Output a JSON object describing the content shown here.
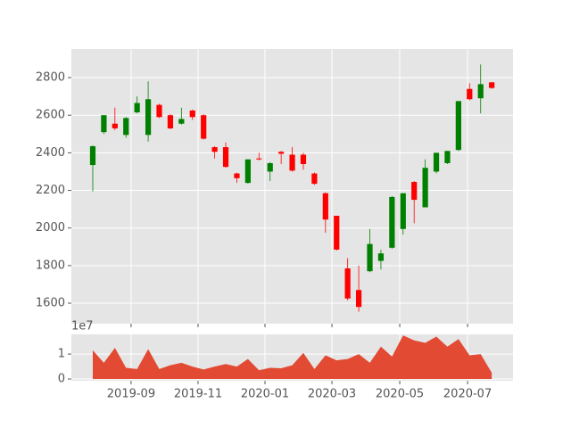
{
  "chart_data": [
    {
      "type": "candlestick",
      "x": [
        0,
        1,
        2,
        3,
        4,
        5,
        6,
        7,
        8,
        9,
        10,
        11,
        12,
        13,
        14,
        15,
        16,
        17,
        18,
        19,
        20,
        21,
        22,
        23,
        24,
        25,
        26,
        27,
        28,
        29,
        30,
        31,
        32,
        33,
        34,
        35,
        36
      ],
      "open": [
        2335,
        2510,
        2555,
        2495,
        2615,
        2495,
        2655,
        2600,
        2555,
        2625,
        2600,
        2430,
        2430,
        2290,
        2240,
        2370,
        2300,
        2405,
        2390,
        2390,
        2290,
        2185,
        2065,
        1785,
        1670,
        1770,
        1825,
        1895,
        1995,
        2245,
        2110,
        2300,
        2345,
        2415,
        2740,
        2690,
        2775
      ],
      "high": [
        2440,
        2600,
        2640,
        2590,
        2700,
        2780,
        2660,
        2605,
        2640,
        2630,
        2605,
        2435,
        2455,
        2295,
        2365,
        2400,
        2350,
        2410,
        2430,
        2400,
        2295,
        2190,
        2065,
        1840,
        1800,
        1995,
        1885,
        2170,
        2185,
        2250,
        2365,
        2400,
        2410,
        2675,
        2770,
        2870,
        2775
      ],
      "low": [
        2195,
        2500,
        2520,
        2480,
        2610,
        2460,
        2585,
        2525,
        2550,
        2575,
        2470,
        2370,
        2320,
        2240,
        2235,
        2360,
        2250,
        2340,
        2300,
        2310,
        2230,
        1975,
        1880,
        1615,
        1555,
        1765,
        1780,
        1890,
        1965,
        2025,
        2110,
        2290,
        2340,
        2410,
        2680,
        2610,
        2740
      ],
      "close": [
        2435,
        2600,
        2530,
        2585,
        2665,
        2685,
        2590,
        2530,
        2580,
        2590,
        2475,
        2405,
        2325,
        2265,
        2365,
        2365,
        2345,
        2395,
        2305,
        2340,
        2235,
        2045,
        1885,
        1625,
        1580,
        1915,
        1865,
        2165,
        2185,
        2150,
        2320,
        2400,
        2410,
        2675,
        2685,
        2765,
        2745
      ],
      "up_color": "#008000",
      "down_color": "#ff0000",
      "xlim": [
        -1.93,
        37.92
      ],
      "ylim": [
        1491,
        2952
      ],
      "yticks": [
        1600,
        1800,
        2000,
        2200,
        2400,
        2600,
        2800
      ],
      "grid": true
    },
    {
      "type": "area",
      "x": [
        0,
        1,
        2,
        3,
        4,
        5,
        6,
        7,
        8,
        9,
        10,
        11,
        12,
        13,
        14,
        15,
        16,
        17,
        18,
        19,
        20,
        21,
        22,
        23,
        24,
        25,
        26,
        27,
        28,
        29,
        30,
        31,
        32,
        33,
        34,
        35,
        36
      ],
      "values": [
        11500000,
        6500000,
        12500000,
        4500000,
        4000000,
        12000000,
        4000000,
        5500000,
        6500000,
        5000000,
        3800000,
        5000000,
        6000000,
        5000000,
        8000000,
        3500000,
        4500000,
        4300000,
        5500000,
        10500000,
        4000000,
        9500000,
        7500000,
        8000000,
        10000000,
        6500000,
        13000000,
        9000000,
        17500000,
        15500000,
        14500000,
        17000000,
        13000000,
        16000000,
        9500000,
        10000000,
        2500000
      ],
      "color": "#e24a33",
      "xlim": [
        -1.93,
        37.92
      ],
      "xticks": [
        {
          "value": 3.46,
          "label": "2019-09"
        },
        {
          "value": 9.5,
          "label": "2019-11"
        },
        {
          "value": 15.54,
          "label": "2020-01"
        },
        {
          "value": 21.58,
          "label": "2020-03"
        },
        {
          "value": 27.7,
          "label": "2020-05"
        },
        {
          "value": 33.82,
          "label": "2020-07"
        }
      ],
      "ylim": [
        -700000,
        17900000
      ],
      "yticks": [
        0,
        {
          "value": 10000000,
          "label": "1"
        }
      ],
      "offset_text": "1e7",
      "grid": true
    }
  ]
}
